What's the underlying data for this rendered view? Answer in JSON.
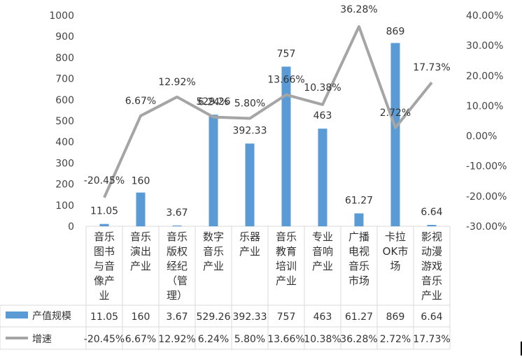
{
  "chart_data": {
    "type": "bar",
    "categories": [
      "音乐图书与音像产业",
      "音乐演出产业",
      "音乐版权经纪（管理）",
      "数字音乐产业",
      "乐器产业",
      "音乐教育培训产业",
      "专业音响产业",
      "广播电视音乐市场",
      "卡拉OK市场",
      "影视动漫游戏音乐产业"
    ],
    "category_lines": [
      [
        "音乐",
        "图书",
        "与音",
        "像产",
        "业"
      ],
      [
        "音乐",
        "演出",
        "产业"
      ],
      [
        "音乐",
        "版权",
        "经纪",
        "（管",
        "理）"
      ],
      [
        "数字",
        "音乐",
        "产业"
      ],
      [
        "乐器",
        "产业"
      ],
      [
        "音乐",
        "教育",
        "培训",
        "产业"
      ],
      [
        "专业",
        "音响",
        "产业"
      ],
      [
        "广播",
        "电视",
        "音乐",
        "市场"
      ],
      [
        "卡拉",
        "OK市",
        "场"
      ],
      [
        "影视",
        "动漫",
        "游戏",
        "音乐",
        "产业"
      ]
    ],
    "series": [
      {
        "name": "产值规模",
        "type": "bar",
        "axis": "left",
        "color": "#5b9bd5",
        "values": [
          11.05,
          160,
          3.67,
          529.26,
          392.33,
          757,
          463,
          61.27,
          869,
          6.64
        ],
        "labels": [
          "11.05",
          "160",
          "3.67",
          "529.26",
          "392.33",
          "757",
          "463",
          "61.27",
          "869",
          "6.64"
        ]
      },
      {
        "name": "增速",
        "type": "line",
        "axis": "right",
        "color": "#a5a5a5",
        "values": [
          -20.45,
          6.67,
          12.92,
          6.24,
          5.8,
          13.66,
          10.38,
          36.28,
          2.72,
          17.73
        ],
        "labels": [
          "-20.45%",
          "6.67%",
          "12.92%",
          "6.24%",
          "5.80%",
          "13.66%",
          "10.38%",
          "36.28%",
          "2.72%",
          "17.73%"
        ]
      }
    ],
    "y_left": {
      "min": 0,
      "max": 1000,
      "ticks": [
        "0",
        "100",
        "200",
        "300",
        "400",
        "500",
        "600",
        "700",
        "800",
        "900",
        "1000"
      ]
    },
    "y_right": {
      "min": -30,
      "max": 40,
      "ticks": [
        "-30.00%",
        "-20.00%",
        "-10.00%",
        "0.00%",
        "10.00%",
        "20.00%",
        "30.00%",
        "40.00%"
      ]
    },
    "grid": false,
    "data_table": true
  }
}
